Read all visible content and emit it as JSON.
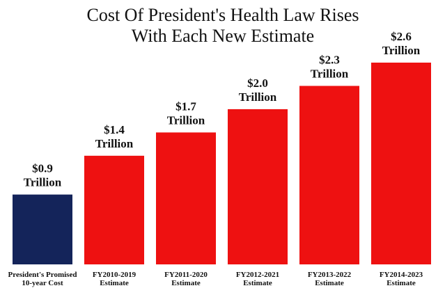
{
  "chart_data": {
    "type": "bar",
    "title": "Cost Of President's Health Law Rises\nWith Each New Estimate",
    "categories": [
      "President's Promised\n10-year Cost",
      "FY2010-2019\nEstimate",
      "FY2011-2020\nEstimate",
      "FY2012-2021\nEstimate",
      "FY2013-2022\nEstimate",
      "FY2014-2023\nEstimate"
    ],
    "values": [
      0.9,
      1.4,
      1.7,
      2.0,
      2.3,
      2.6
    ],
    "value_labels": [
      "$0.9\nTrillion",
      "$1.4\nTrillion",
      "$1.7\nTrillion",
      "$2.0\nTrillion",
      "$2.3\nTrillion",
      "$2.6\nTrillion"
    ],
    "colors": [
      "#14245a",
      "#ee1111",
      "#ee1111",
      "#ee1111",
      "#ee1111",
      "#ee1111"
    ]
  }
}
